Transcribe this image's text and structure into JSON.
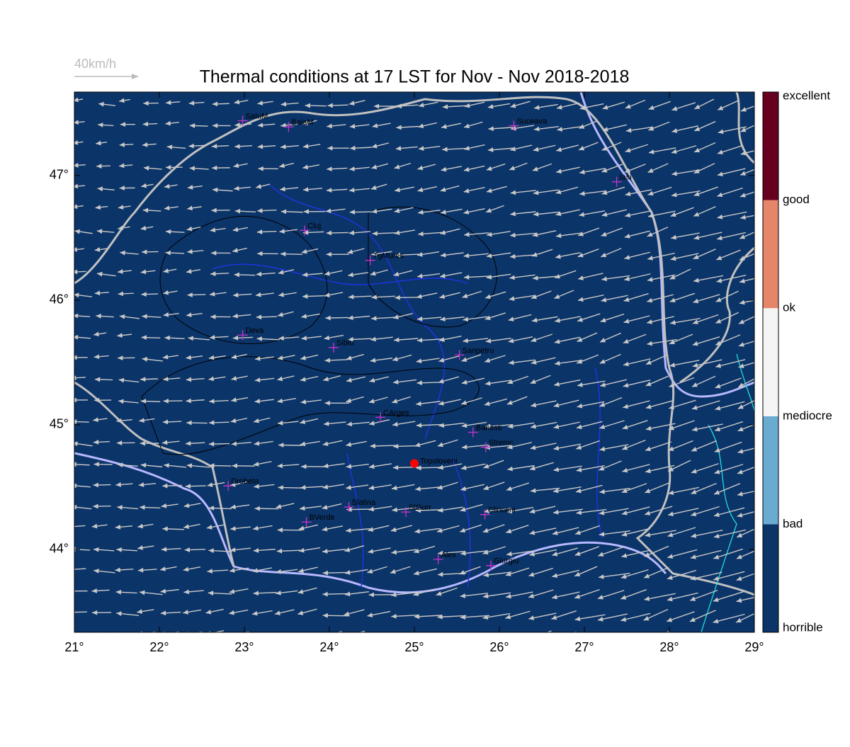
{
  "chart_data": {
    "type": "map",
    "title": "Thermal conditions at 17 LST for Nov - Nov  2018-2018",
    "wind_scale_label": "40km/h",
    "background": "#0b3468",
    "xlim": [
      21,
      29
    ],
    "ylim": [
      43.335,
      47.67
    ],
    "xticks": [
      {
        "value": 21,
        "label": "21°"
      },
      {
        "value": 22,
        "label": "22°"
      },
      {
        "value": 23,
        "label": "23°"
      },
      {
        "value": 24,
        "label": "24°"
      },
      {
        "value": 25,
        "label": "25°"
      },
      {
        "value": 26,
        "label": "26°"
      },
      {
        "value": 27,
        "label": "27°"
      },
      {
        "value": 28,
        "label": "28°"
      },
      {
        "value": 29,
        "label": "29°"
      }
    ],
    "yticks": [
      {
        "value": 44,
        "label": "44°"
      },
      {
        "value": 45,
        "label": "45°"
      },
      {
        "value": 46,
        "label": "46°"
      },
      {
        "value": 47,
        "label": "47°"
      }
    ],
    "marker_color": "#cc33cc",
    "points": [
      {
        "name": "SatuM",
        "lon": 22.98,
        "lat": 47.44
      },
      {
        "name": "BaiaM",
        "lon": 23.52,
        "lat": 47.39
      },
      {
        "name": "Suceava",
        "lon": 26.17,
        "lat": 47.4
      },
      {
        "name": "Iasi",
        "lon": 27.38,
        "lat": 46.95
      },
      {
        "name": "Cluj",
        "lon": 23.71,
        "lat": 46.56
      },
      {
        "name": "TgMures",
        "lon": 24.48,
        "lat": 46.32
      },
      {
        "name": "Deva",
        "lon": 22.98,
        "lat": 45.72
      },
      {
        "name": "Sibiu",
        "lon": 24.05,
        "lat": 45.62
      },
      {
        "name": "Sanpetru",
        "lon": 25.53,
        "lat": 45.56
      },
      {
        "name": "CArges",
        "lon": 24.6,
        "lat": 45.06
      },
      {
        "name": "Banesti",
        "lon": 25.69,
        "lat": 44.94
      },
      {
        "name": "Stremc",
        "lon": 25.84,
        "lat": 44.82
      },
      {
        "name": "Drobeta",
        "lon": 22.81,
        "lat": 44.51
      },
      {
        "name": "Slatina",
        "lon": 24.23,
        "lat": 44.34
      },
      {
        "name": "SlGurr",
        "lon": 24.9,
        "lat": 44.3
      },
      {
        "name": "Clinceni",
        "lon": 25.83,
        "lat": 44.28
      },
      {
        "name": "BVerde",
        "lon": 23.73,
        "lat": 44.22
      },
      {
        "name": "Alex",
        "lon": 25.28,
        "lat": 43.92
      },
      {
        "name": "Giurgiu",
        "lon": 25.9,
        "lat": 43.87
      }
    ],
    "site": {
      "name": "Topoloveni",
      "lon": 25.0,
      "lat": 44.69,
      "color": "#ff0000"
    },
    "colorbar": {
      "labels": [
        "horrible",
        "bad",
        "mediocre",
        "ok",
        "good",
        "excellent"
      ],
      "colors": [
        "#0b3468",
        "#6aabd2",
        "#f5f5f5",
        "#e5856a",
        "#67001f"
      ]
    }
  }
}
